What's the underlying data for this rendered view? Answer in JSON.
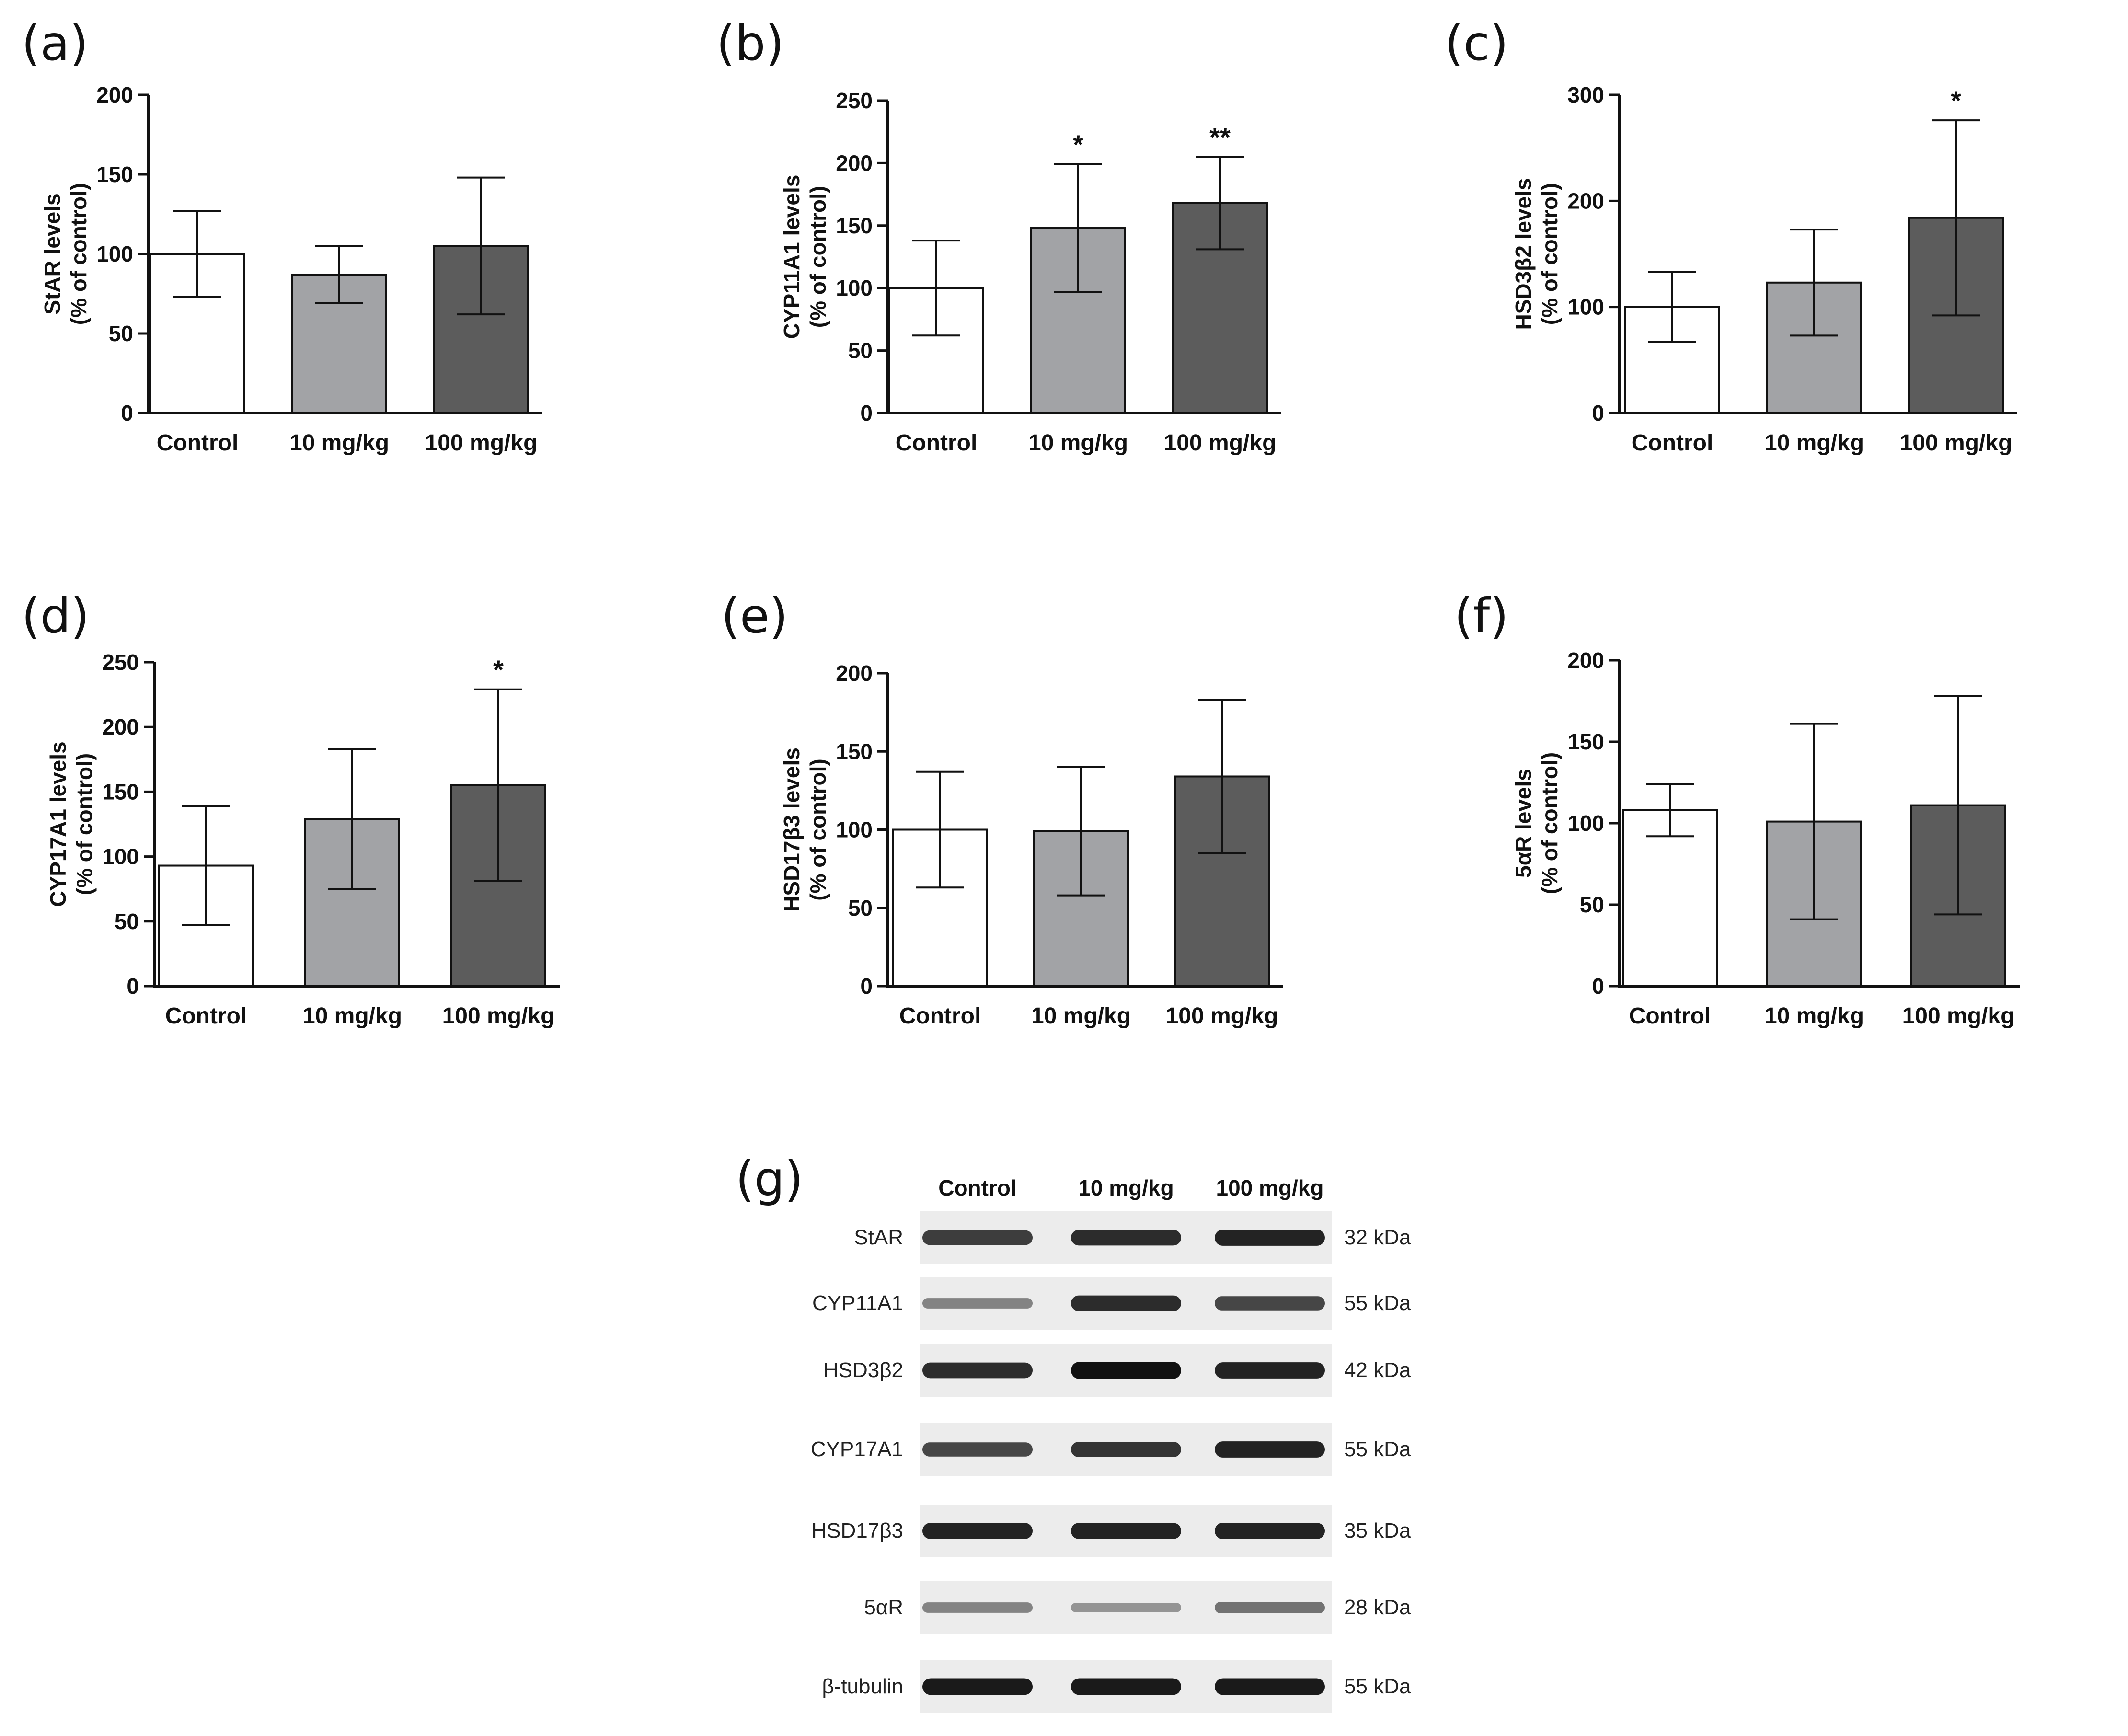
{
  "chart_data": [
    {
      "type": "bar",
      "panel": "(a)",
      "categories": [
        "Control",
        "10 mg/kg",
        "100 mg/kg"
      ],
      "values": [
        100,
        87,
        105
      ],
      "errors": [
        27,
        18,
        43
      ],
      "significance": [
        "",
        "",
        ""
      ],
      "ylabel": "StAR levels",
      "ylabel2": "(% of control)",
      "ylim": [
        0,
        200
      ],
      "yticks": [
        0,
        50,
        100,
        150,
        200
      ]
    },
    {
      "type": "bar",
      "panel": "(b)",
      "categories": [
        "Control",
        "10 mg/kg",
        "100 mg/kg"
      ],
      "values": [
        100,
        148,
        168
      ],
      "errors": [
        38,
        51,
        37
      ],
      "significance": [
        "",
        "*",
        "**"
      ],
      "ylabel": "CYP11A1 levels",
      "ylabel2": "(% of control)",
      "ylim": [
        0,
        250
      ],
      "yticks": [
        0,
        50,
        100,
        150,
        200,
        250
      ]
    },
    {
      "type": "bar",
      "panel": "(c)",
      "categories": [
        "Control",
        "10 mg/kg",
        "100 mg/kg"
      ],
      "values": [
        100,
        123,
        184
      ],
      "errors": [
        33,
        50,
        92
      ],
      "significance": [
        "",
        "",
        "*"
      ],
      "ylabel": "HSD3β2 levels",
      "ylabel2": "(% of control)",
      "ylim": [
        0,
        300
      ],
      "yticks": [
        0,
        100,
        200,
        300
      ]
    },
    {
      "type": "bar",
      "panel": "(d)",
      "categories": [
        "Control",
        "10 mg/kg",
        "100 mg/kg"
      ],
      "values": [
        93,
        129,
        155
      ],
      "errors": [
        46,
        54,
        74
      ],
      "significance": [
        "",
        "",
        "*"
      ],
      "ylabel": "CYP17A1 levels",
      "ylabel2": "(% of control)",
      "ylim": [
        0,
        250
      ],
      "yticks": [
        0,
        50,
        100,
        150,
        200,
        250
      ]
    },
    {
      "type": "bar",
      "panel": "(e)",
      "categories": [
        "Control",
        "10 mg/kg",
        "100 mg/kg"
      ],
      "values": [
        100,
        99,
        134
      ],
      "errors": [
        37,
        41,
        49
      ],
      "significance": [
        "",
        "",
        ""
      ],
      "ylabel": "HSD17β3 levels",
      "ylabel2": "(% of control)",
      "ylim": [
        0,
        200
      ],
      "yticks": [
        0,
        50,
        100,
        150,
        200
      ]
    },
    {
      "type": "bar",
      "panel": "(f)",
      "categories": [
        "Control",
        "10 mg/kg",
        "100 mg/kg"
      ],
      "values": [
        108,
        101,
        111
      ],
      "errors": [
        16,
        60,
        67
      ],
      "significance": [
        "",
        "",
        ""
      ],
      "ylabel": "5αR levels",
      "ylabel2": "(% of control)",
      "ylim": [
        0,
        200
      ],
      "yticks": [
        0,
        50,
        100,
        150,
        200
      ]
    }
  ],
  "bar_colors": [
    "#ffffff",
    "#a2a3a6",
    "#5c5c5c"
  ],
  "western_blot": {
    "panel": "(g)",
    "lanes": [
      "Control",
      "10 mg/kg",
      "100 mg/kg"
    ],
    "rows": [
      {
        "protein": "StAR",
        "size": "32 kDa",
        "intensity": [
          0.75,
          0.85,
          0.9
        ]
      },
      {
        "protein": "CYP11A1",
        "size": "55 kDa",
        "intensity": [
          0.35,
          0.85,
          0.7
        ]
      },
      {
        "protein": "HSD3β2",
        "size": "42 kDa",
        "intensity": [
          0.85,
          1.0,
          0.9
        ]
      },
      {
        "protein": "CYP17A1",
        "size": "55 kDa",
        "intensity": [
          0.7,
          0.8,
          0.9
        ]
      },
      {
        "protein": "HSD17β3",
        "size": "35 kDa",
        "intensity": [
          0.9,
          0.9,
          0.9
        ]
      },
      {
        "protein": "5αR",
        "size": "28 kDa",
        "intensity": [
          0.35,
          0.25,
          0.45
        ]
      },
      {
        "protein": "β-tubulin",
        "size": "55 kDa",
        "intensity": [
          0.95,
          0.95,
          0.95
        ]
      }
    ]
  }
}
